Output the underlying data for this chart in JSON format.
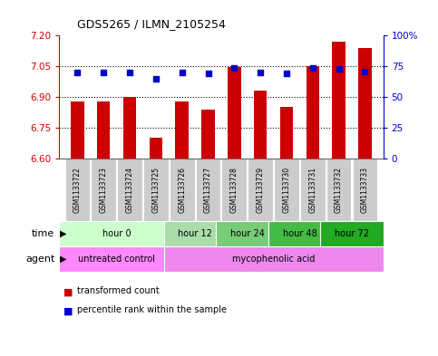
{
  "title": "GDS5265 / ILMN_2105254",
  "bar_values": [
    6.88,
    6.88,
    6.9,
    6.7,
    6.88,
    6.84,
    7.045,
    6.93,
    6.85,
    7.05,
    7.17,
    7.14
  ],
  "percentile_values": [
    70,
    70,
    70,
    65,
    70,
    69,
    74,
    70,
    69,
    74,
    73,
    71
  ],
  "sample_labels": [
    "GSM1133722",
    "GSM1133723",
    "GSM1133724",
    "GSM1133725",
    "GSM1133726",
    "GSM1133727",
    "GSM1133728",
    "GSM1133729",
    "GSM1133730",
    "GSM1133731",
    "GSM1133732",
    "GSM1133733"
  ],
  "ylim_left": [
    6.6,
    7.2
  ],
  "ylim_right": [
    0,
    100
  ],
  "yticks_left": [
    6.6,
    6.75,
    6.9,
    7.05,
    7.2
  ],
  "yticks_right": [
    0,
    25,
    50,
    75,
    100
  ],
  "hlines": [
    6.75,
    6.9,
    7.05
  ],
  "bar_color": "#cc0000",
  "percentile_color": "#0000cc",
  "bar_bottom": 6.6,
  "time_group_data": [
    [
      0,
      4,
      "#ccffcc",
      "hour 0"
    ],
    [
      4,
      6,
      "#aaddaa",
      "hour 12"
    ],
    [
      6,
      8,
      "#77cc77",
      "hour 24"
    ],
    [
      8,
      10,
      "#44bb44",
      "hour 48"
    ],
    [
      10,
      12,
      "#22aa22",
      "hour 72"
    ]
  ],
  "agent_group_data": [
    [
      0,
      4,
      "#ff88ff",
      "untreated control"
    ],
    [
      4,
      12,
      "#ee88ee",
      "mycophenolic acid"
    ]
  ],
  "legend_items": [
    {
      "label": "transformed count",
      "color": "#cc0000"
    },
    {
      "label": "percentile rank within the sample",
      "color": "#0000cc"
    }
  ],
  "sample_bg_color": "#cccccc",
  "right_axis_color": "#0000cc",
  "left_axis_color": "#cc0000"
}
